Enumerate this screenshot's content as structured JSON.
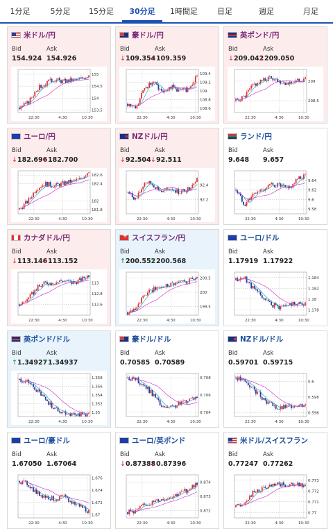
{
  "tabs": [
    {
      "label": "1分足",
      "active": false
    },
    {
      "label": "5分足",
      "active": false
    },
    {
      "label": "15分足",
      "active": false
    },
    {
      "label": "30分足",
      "active": true
    },
    {
      "label": "1時間足",
      "active": false
    },
    {
      "label": "日足",
      "active": false
    },
    {
      "label": "週足",
      "active": false
    },
    {
      "label": "月足",
      "active": false
    }
  ],
  "labels": {
    "bid": "Bid",
    "ask": "Ask"
  },
  "x_ticks": [
    "22:30",
    "4:30",
    "10:30"
  ],
  "cards": [
    {
      "title": "米ドル/円",
      "flag": "flag-us",
      "bg": "red",
      "title_color": "purple",
      "bid": "154.924",
      "ask": "154.926",
      "dir": "none",
      "chart_data": {
        "type": "candlestick",
        "y_ticks": [
          "155",
          "154.5",
          "154",
          "153.5"
        ],
        "ylim": [
          153.4,
          155.2
        ],
        "trend": [
          153.6,
          153.8,
          154.4,
          154.6,
          154.8,
          154.7,
          154.75,
          154.8,
          155.0
        ]
      }
    },
    {
      "title": "豪ドル/円",
      "flag": "flag-au",
      "bg": "red",
      "title_color": "purple",
      "bid": "109.354",
      "ask": "109.359",
      "dir": "down",
      "chart_data": {
        "type": "candlestick",
        "y_ticks": [
          "109.4",
          "109.2",
          "109",
          "108.8",
          "108.6"
        ],
        "ylim": [
          108.5,
          109.5
        ],
        "trend": [
          108.7,
          108.6,
          109.1,
          109.2,
          109.0,
          109.1,
          109.0,
          109.05,
          109.35
        ]
      }
    },
    {
      "title": "英ポンド/円",
      "flag": "flag-gb",
      "bg": "red",
      "title_color": "purple",
      "bid": "209.042",
      "ask": "209.050",
      "dir": "down",
      "chart_data": {
        "type": "candlestick",
        "y_ticks": [
          "209",
          "208.5"
        ],
        "ylim": [
          208.2,
          209.3
        ],
        "trend": [
          208.5,
          208.6,
          208.9,
          209.0,
          209.1,
          209.0,
          208.95,
          209.0,
          209.05
        ]
      }
    },
    {
      "title": "ユーロ/円",
      "flag": "flag-eu",
      "bg": "red",
      "title_color": "purple",
      "bid": "182.696",
      "ask": "182.700",
      "dir": "down",
      "chart_data": {
        "type": "candlestick",
        "y_ticks": [
          "182.6",
          "182.4",
          "182",
          "181.8"
        ],
        "ylim": [
          181.7,
          182.7
        ],
        "trend": [
          181.8,
          182.0,
          182.3,
          182.4,
          182.35,
          182.4,
          182.45,
          182.5,
          182.7
        ]
      }
    },
    {
      "title": "NZドル/円",
      "flag": "flag-nz",
      "bg": "red",
      "title_color": "purple",
      "bid": "92.504",
      "ask": "92.511",
      "dir": "down",
      "chart_data": {
        "type": "candlestick",
        "y_ticks": [
          "92.4",
          "92.2"
        ],
        "ylim": [
          92.0,
          92.6
        ],
        "trend": [
          92.3,
          92.2,
          92.45,
          92.4,
          92.3,
          92.35,
          92.3,
          92.35,
          92.5
        ]
      }
    },
    {
      "title": "ランド/円",
      "flag": "flag-za",
      "bg": "white",
      "title_color": "blue",
      "bid": "9.648",
      "ask": "9.657",
      "dir": "none",
      "chart_data": {
        "type": "candlestick",
        "y_ticks": [
          "9.64",
          "9.62",
          "9.6",
          "9.58"
        ],
        "ylim": [
          9.57,
          9.66
        ],
        "trend": [
          9.62,
          9.59,
          9.61,
          9.62,
          9.63,
          9.63,
          9.62,
          9.64,
          9.65
        ]
      }
    },
    {
      "title": "カナダドル/円",
      "flag": "flag-ca",
      "bg": "red",
      "title_color": "purple",
      "bid": "113.146",
      "ask": "113.152",
      "dir": "down",
      "chart_data": {
        "type": "candlestick",
        "y_ticks": [
          "113",
          "112.8",
          "112.6"
        ],
        "ylim": [
          112.4,
          113.2
        ],
        "trend": [
          112.6,
          112.7,
          112.9,
          113.0,
          113.0,
          113.05,
          113.0,
          113.05,
          113.15
        ]
      }
    },
    {
      "title": "スイスフラン/円",
      "flag": "flag-ch",
      "bg": "blue",
      "title_color": "purple",
      "bid": "200.552",
      "ask": "200.568",
      "dir": "up",
      "chart_data": {
        "type": "candlestick",
        "y_ticks": [
          "200.5",
          "200",
          "199.5"
        ],
        "ylim": [
          199.2,
          200.7
        ],
        "trend": [
          199.3,
          199.5,
          199.9,
          200.1,
          200.2,
          200.3,
          200.35,
          200.4,
          200.55
        ]
      }
    },
    {
      "title": "ユーロ/ドル",
      "flag": "flag-eu",
      "bg": "white",
      "title_color": "blue",
      "bid": "1.17919",
      "ask": "1.17922",
      "dir": "none",
      "chart_data": {
        "type": "candlestick",
        "y_ticks": [
          "1.184",
          "1.182",
          "1.18",
          "1.178"
        ],
        "ylim": [
          1.177,
          1.185
        ],
        "trend": [
          1.1835,
          1.184,
          1.182,
          1.1805,
          1.179,
          1.1785,
          1.179,
          1.1792,
          1.1792
        ]
      }
    },
    {
      "title": "英ポンド/ドル",
      "flag": "flag-gb",
      "bg": "blue",
      "title_color": "blue",
      "bid": "1.34927",
      "ask": "1.34937",
      "dir": "up",
      "chart_data": {
        "type": "candlestick",
        "y_ticks": [
          "1.358",
          "1.356",
          "1.354",
          "1.352",
          "1.35"
        ],
        "ylim": [
          1.349,
          1.359
        ],
        "trend": [
          1.3575,
          1.357,
          1.355,
          1.353,
          1.351,
          1.35,
          1.3495,
          1.3495,
          1.3493
        ]
      }
    },
    {
      "title": "豪ドル/ドル",
      "flag": "flag-au",
      "bg": "white",
      "title_color": "blue",
      "bid": "0.70585",
      "ask": "0.70589",
      "dir": "none",
      "chart_data": {
        "type": "candlestick",
        "y_ticks": [
          "0.708",
          "0.706",
          "0.704"
        ],
        "ylim": [
          0.7035,
          0.7085
        ],
        "trend": [
          0.708,
          0.7078,
          0.707,
          0.706,
          0.7045,
          0.7045,
          0.705,
          0.7055,
          0.7058
        ]
      }
    },
    {
      "title": "NZドル/ドル",
      "flag": "flag-nz",
      "bg": "white",
      "title_color": "blue",
      "bid": "0.59701",
      "ask": "0.59715",
      "dir": "none",
      "chart_data": {
        "type": "candlestick",
        "y_ticks": [
          "0.6",
          "0.598",
          "0.596"
        ],
        "ylim": [
          0.5955,
          0.601
        ],
        "trend": [
          0.6005,
          0.6,
          0.599,
          0.598,
          0.597,
          0.5965,
          0.5968,
          0.597,
          0.597
        ]
      }
    },
    {
      "title": "ユーロ/豪ドル",
      "flag": "flag-eu",
      "bg": "white",
      "title_color": "blue",
      "bid": "1.67050",
      "ask": "1.67064",
      "dir": "none",
      "chart_data": {
        "type": "candlestick",
        "y_ticks": [
          "1.676",
          "1.674",
          "1.672",
          "1.67"
        ],
        "ylim": [
          1.6695,
          1.6765
        ],
        "trend": [
          1.6755,
          1.675,
          1.6735,
          1.673,
          1.6725,
          1.673,
          1.672,
          1.6715,
          1.6705
        ]
      }
    },
    {
      "title": "ユーロ/英ポンド",
      "flag": "flag-eu",
      "bg": "white",
      "title_color": "blue",
      "bid": "0.87388",
      "ask": "0.87396",
      "dir": "down",
      "chart_data": {
        "type": "candlestick",
        "y_ticks": [
          "0.874",
          "0.873",
          "0.872"
        ],
        "ylim": [
          0.8715,
          0.8745
        ],
        "trend": [
          0.8719,
          0.872,
          0.8724,
          0.8726,
          0.8728,
          0.873,
          0.8732,
          0.8735,
          0.8739
        ]
      }
    },
    {
      "title": "米ドル/スイスフラン",
      "flag": "flag-us",
      "bg": "white",
      "title_color": "blue",
      "bid": "0.77247",
      "ask": "0.77262",
      "dir": "none",
      "chart_data": {
        "type": "candlestick",
        "y_ticks": [
          "0.773",
          "0.772",
          "0.771",
          "0.77"
        ],
        "ylim": [
          0.7695,
          0.7735
        ],
        "trend": [
          0.7705,
          0.771,
          0.7718,
          0.7722,
          0.7724,
          0.7726,
          0.7725,
          0.7726,
          0.7725
        ]
      }
    }
  ]
}
